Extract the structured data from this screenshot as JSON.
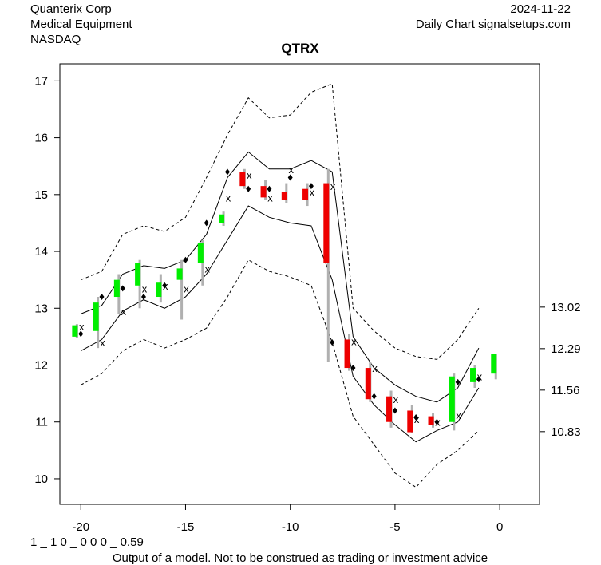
{
  "header": {
    "company": "Quanterix Corp",
    "sector": "Medical Equipment",
    "exchange": "NASDAQ",
    "date": "2024-11-22",
    "source": "Daily Chart signalsetups.com"
  },
  "footer": {
    "model_code": "1 _ 1 0 _ 0 0 0 _ 0.59",
    "disclaimer": "Output of a model. Not to be construed as trading or investment advice"
  },
  "colors": {
    "up": "#00ee00",
    "down": "#ee0000",
    "wick": "#b0b0b0",
    "band": "#000000"
  },
  "chart_data": {
    "type": "candlestick",
    "title": "QTRX",
    "xlim": [
      -21,
      1.9
    ],
    "ylim": [
      9.55,
      17.3
    ],
    "x_ticks": [
      -20,
      -15,
      -10,
      -5,
      0
    ],
    "x_tick_labels": [
      "-20",
      "-15",
      "-10",
      "-5",
      "0"
    ],
    "y_ticks": [
      10,
      11,
      12,
      13,
      14,
      15,
      16,
      17
    ],
    "y_tick_labels": [
      "10",
      "11",
      "12",
      "13",
      "14",
      "15",
      "16",
      "17"
    ],
    "right_axis_levels": [
      13.02,
      12.29,
      11.56,
      10.83
    ],
    "right_axis_labels": [
      "13.02",
      "12.29",
      "11.56",
      "10.83"
    ],
    "candles": [
      {
        "x": -20.3,
        "open": 12.5,
        "close": 12.7,
        "high": 12.72,
        "low": 12.48,
        "dir": "up"
      },
      {
        "x": -19.3,
        "open": 12.6,
        "close": 13.1,
        "high": 13.2,
        "low": 12.3,
        "dir": "up"
      },
      {
        "x": -18.3,
        "open": 13.2,
        "close": 13.5,
        "high": 13.6,
        "low": 12.9,
        "dir": "up"
      },
      {
        "x": -17.3,
        "open": 13.4,
        "close": 13.8,
        "high": 13.85,
        "low": 13.0,
        "dir": "up"
      },
      {
        "x": -16.3,
        "open": 13.2,
        "close": 13.45,
        "high": 13.6,
        "low": 13.1,
        "dir": "up"
      },
      {
        "x": -15.3,
        "open": 13.5,
        "close": 13.7,
        "high": 13.85,
        "low": 12.8,
        "dir": "up"
      },
      {
        "x": -14.3,
        "open": 13.8,
        "close": 14.15,
        "high": 14.2,
        "low": 13.4,
        "dir": "up"
      },
      {
        "x": -13.3,
        "open": 14.5,
        "close": 14.65,
        "high": 14.7,
        "low": 14.45,
        "dir": "up"
      },
      {
        "x": -12.3,
        "open": 15.4,
        "close": 15.15,
        "high": 15.45,
        "low": 15.1,
        "dir": "down"
      },
      {
        "x": -11.3,
        "open": 15.15,
        "close": 14.95,
        "high": 15.25,
        "low": 14.9,
        "dir": "down"
      },
      {
        "x": -10.3,
        "open": 15.05,
        "close": 14.9,
        "high": 15.2,
        "low": 14.85,
        "dir": "down"
      },
      {
        "x": -9.3,
        "open": 15.1,
        "close": 14.9,
        "high": 15.2,
        "low": 14.8,
        "dir": "down"
      },
      {
        "x": -8.3,
        "open": 15.2,
        "close": 13.8,
        "high": 15.45,
        "low": 12.05,
        "dir": "down"
      },
      {
        "x": -7.3,
        "open": 12.45,
        "close": 11.95,
        "high": 12.55,
        "low": 11.9,
        "dir": "down"
      },
      {
        "x": -6.3,
        "open": 11.95,
        "close": 11.4,
        "high": 12.05,
        "low": 11.35,
        "dir": "down"
      },
      {
        "x": -5.3,
        "open": 11.45,
        "close": 11.0,
        "high": 11.55,
        "low": 10.9,
        "dir": "down"
      },
      {
        "x": -4.3,
        "open": 11.2,
        "close": 10.82,
        "high": 11.3,
        "low": 10.8,
        "dir": "down"
      },
      {
        "x": -3.3,
        "open": 11.1,
        "close": 10.95,
        "high": 11.15,
        "low": 10.9,
        "dir": "down"
      },
      {
        "x": -2.3,
        "open": 11.0,
        "close": 11.8,
        "high": 11.85,
        "low": 10.85,
        "dir": "up"
      },
      {
        "x": -1.3,
        "open": 11.7,
        "close": 11.95,
        "high": 12.0,
        "low": 11.6,
        "dir": "up"
      },
      {
        "x": -0.3,
        "open": 11.85,
        "close": 12.2,
        "high": 12.2,
        "low": 11.75,
        "dir": "up"
      }
    ],
    "marks_x": [
      {
        "x": -20,
        "y": 12.68
      },
      {
        "x": -19,
        "y": 12.4
      },
      {
        "x": -18,
        "y": 12.95
      },
      {
        "x": -17,
        "y": 13.35
      },
      {
        "x": -16,
        "y": 13.4
      },
      {
        "x": -15,
        "y": 13.35
      },
      {
        "x": -14,
        "y": 13.7
      },
      {
        "x": -13,
        "y": 14.95
      },
      {
        "x": -12,
        "y": 15.35
      },
      {
        "x": -11,
        "y": 14.95
      },
      {
        "x": -10,
        "y": 15.45
      },
      {
        "x": -9,
        "y": 15.05
      },
      {
        "x": -8,
        "y": 15.15
      },
      {
        "x": -7,
        "y": 12.42
      },
      {
        "x": -6,
        "y": 11.95
      },
      {
        "x": -5,
        "y": 11.4
      },
      {
        "x": -4,
        "y": 11.05
      },
      {
        "x": -3,
        "y": 11.0
      },
      {
        "x": -2,
        "y": 11.12
      },
      {
        "x": -1,
        "y": 11.8
      }
    ],
    "marks_diamond": [
      {
        "x": -20,
        "y": 12.55
      },
      {
        "x": -19,
        "y": 13.2
      },
      {
        "x": -18,
        "y": 13.35
      },
      {
        "x": -17,
        "y": 13.2
      },
      {
        "x": -16,
        "y": 13.4
      },
      {
        "x": -15,
        "y": 13.85
      },
      {
        "x": -14,
        "y": 14.5
      },
      {
        "x": -13,
        "y": 15.4
      },
      {
        "x": -12,
        "y": 15.1
      },
      {
        "x": -11,
        "y": 15.1
      },
      {
        "x": -10,
        "y": 15.3
      },
      {
        "x": -9,
        "y": 15.15
      },
      {
        "x": -8,
        "y": 12.4
      },
      {
        "x": -7,
        "y": 11.95
      },
      {
        "x": -6,
        "y": 11.45
      },
      {
        "x": -5,
        "y": 11.2
      },
      {
        "x": -4,
        "y": 11.08
      },
      {
        "x": -3,
        "y": 11.0
      },
      {
        "x": -2,
        "y": 11.7
      },
      {
        "x": -1,
        "y": 11.75
      }
    ],
    "bands": {
      "x": [
        -20,
        -19,
        -18,
        -17,
        -16,
        -15,
        -14,
        -13,
        -12,
        -11,
        -10,
        -9,
        -8,
        -7,
        -6,
        -5,
        -4,
        -3,
        -2,
        -1
      ],
      "inner_upper": [
        12.9,
        13.05,
        13.6,
        13.75,
        13.7,
        13.85,
        14.3,
        15.3,
        15.75,
        15.45,
        15.45,
        15.6,
        15.4,
        12.5,
        11.95,
        11.65,
        11.45,
        11.35,
        11.6,
        12.3
      ],
      "inner_lower": [
        12.25,
        12.45,
        12.95,
        13.15,
        13.0,
        13.2,
        13.6,
        14.2,
        14.8,
        14.6,
        14.5,
        14.45,
        13.5,
        11.8,
        11.3,
        10.95,
        10.65,
        10.85,
        11.0,
        11.6
      ],
      "outer_upper": [
        13.5,
        13.65,
        14.3,
        14.45,
        14.35,
        14.6,
        15.3,
        16.05,
        16.7,
        16.35,
        16.4,
        16.8,
        16.95,
        13.0,
        12.6,
        12.3,
        12.15,
        12.1,
        12.45,
        13.0
      ],
      "outer_lower": [
        11.65,
        11.85,
        12.25,
        12.45,
        12.3,
        12.45,
        12.65,
        13.2,
        13.85,
        13.65,
        13.55,
        13.4,
        12.4,
        11.1,
        10.6,
        10.1,
        9.85,
        10.25,
        10.5,
        10.85
      ]
    }
  }
}
